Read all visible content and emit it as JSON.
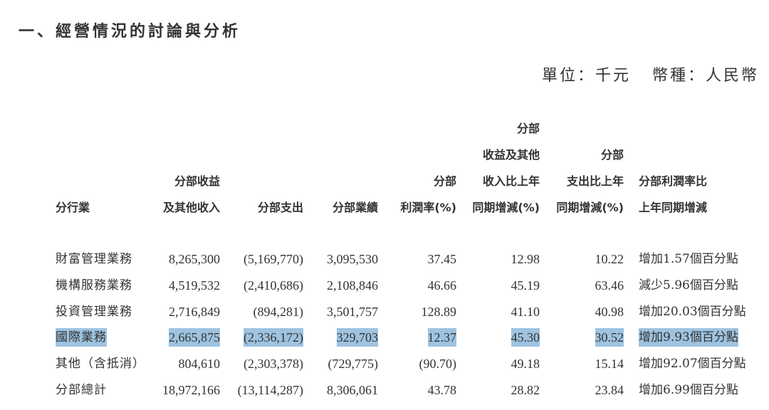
{
  "title": "一、經營情況的討論與分析",
  "unit": {
    "unit_label": "單位：千元",
    "currency_label": "幣種：人民幣"
  },
  "table": {
    "headers": [
      {
        "lines": [
          "分行業"
        ]
      },
      {
        "lines": [
          "分部收益",
          "及其他收入"
        ]
      },
      {
        "lines": [
          "分部支出"
        ]
      },
      {
        "lines": [
          "分部業績"
        ]
      },
      {
        "lines": [
          "分部",
          "利潤率(%)"
        ]
      },
      {
        "lines": [
          "分部",
          "收益及其他",
          "收入比上年",
          "同期增減(%)"
        ]
      },
      {
        "lines": [
          "分部",
          "支出比上年",
          "同期增減(%)"
        ]
      },
      {
        "lines": [
          "分部利潤率比",
          "上年同期增減"
        ]
      }
    ],
    "rows": [
      {
        "segment": "財富管理業務",
        "revenue": "8,265,300",
        "expense": "(5,169,770)",
        "result": "3,095,530",
        "margin": "37.45",
        "revenue_yoy": "12.98",
        "expense_yoy": "10.22",
        "margin_change": "增加1.57個百分點",
        "highlighted": false
      },
      {
        "segment": "機構服務業務",
        "revenue": "4,519,532",
        "expense": "(2,410,686)",
        "result": "2,108,846",
        "margin": "46.66",
        "revenue_yoy": "45.19",
        "expense_yoy": "63.46",
        "margin_change": "減少5.96個百分點",
        "highlighted": false
      },
      {
        "segment": "投資管理業務",
        "revenue": "2,716,849",
        "expense": "(894,281)",
        "result": "3,501,757",
        "margin": "128.89",
        "revenue_yoy": "41.10",
        "expense_yoy": "40.98",
        "margin_change": "增加20.03個百分點",
        "highlighted": false
      },
      {
        "segment": "國際業務",
        "revenue": "2,665,875",
        "expense": "(2,336,172)",
        "result": "329,703",
        "margin": "12.37",
        "revenue_yoy": "45.30",
        "expense_yoy": "30.52",
        "margin_change": "增加9.93個百分點",
        "highlighted": true
      },
      {
        "segment": "其他（含抵消）",
        "revenue": "804,610",
        "expense": "(2,303,378)",
        "result": "(729,775)",
        "margin": "(90.70)",
        "revenue_yoy": "49.18",
        "expense_yoy": "15.14",
        "margin_change": "增加92.07個百分點",
        "highlighted": false
      },
      {
        "segment": "分部總計",
        "revenue": "18,972,166",
        "expense": "(13,114,287)",
        "result": "8,306,061",
        "margin": "43.78",
        "revenue_yoy": "28.82",
        "expense_yoy": "23.84",
        "margin_change": "增加6.99個百分點",
        "highlighted": false
      }
    ]
  },
  "colors": {
    "highlight": "#9ec3e0",
    "text": "#333333"
  }
}
